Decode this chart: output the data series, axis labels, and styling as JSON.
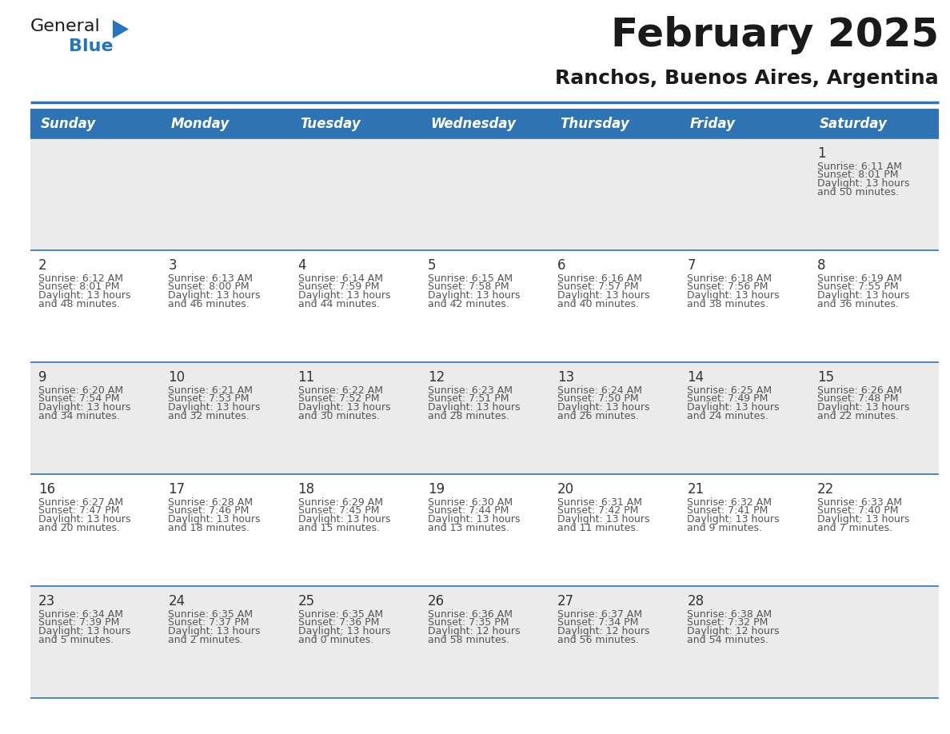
{
  "title": "February 2025",
  "subtitle": "Ranchos, Buenos Aires, Argentina",
  "days_of_week": [
    "Sunday",
    "Monday",
    "Tuesday",
    "Wednesday",
    "Thursday",
    "Friday",
    "Saturday"
  ],
  "header_bg": "#2E74B5",
  "header_text": "#FFFFFF",
  "row_bg": [
    "#EBEBEB",
    "#FFFFFF",
    "#EBEBEB",
    "#FFFFFF",
    "#EBEBEB"
  ],
  "divider_color": "#2E74B5",
  "day_num_color": "#333333",
  "cell_text_color": "#555555",
  "calendar_data": [
    {
      "day": 1,
      "col": 6,
      "row": 0,
      "sunrise": "6:11 AM",
      "sunset": "8:01 PM",
      "daylight": "13 hours and 50 minutes."
    },
    {
      "day": 2,
      "col": 0,
      "row": 1,
      "sunrise": "6:12 AM",
      "sunset": "8:01 PM",
      "daylight": "13 hours and 48 minutes."
    },
    {
      "day": 3,
      "col": 1,
      "row": 1,
      "sunrise": "6:13 AM",
      "sunset": "8:00 PM",
      "daylight": "13 hours and 46 minutes."
    },
    {
      "day": 4,
      "col": 2,
      "row": 1,
      "sunrise": "6:14 AM",
      "sunset": "7:59 PM",
      "daylight": "13 hours and 44 minutes."
    },
    {
      "day": 5,
      "col": 3,
      "row": 1,
      "sunrise": "6:15 AM",
      "sunset": "7:58 PM",
      "daylight": "13 hours and 42 minutes."
    },
    {
      "day": 6,
      "col": 4,
      "row": 1,
      "sunrise": "6:16 AM",
      "sunset": "7:57 PM",
      "daylight": "13 hours and 40 minutes."
    },
    {
      "day": 7,
      "col": 5,
      "row": 1,
      "sunrise": "6:18 AM",
      "sunset": "7:56 PM",
      "daylight": "13 hours and 38 minutes."
    },
    {
      "day": 8,
      "col": 6,
      "row": 1,
      "sunrise": "6:19 AM",
      "sunset": "7:55 PM",
      "daylight": "13 hours and 36 minutes."
    },
    {
      "day": 9,
      "col": 0,
      "row": 2,
      "sunrise": "6:20 AM",
      "sunset": "7:54 PM",
      "daylight": "13 hours and 34 minutes."
    },
    {
      "day": 10,
      "col": 1,
      "row": 2,
      "sunrise": "6:21 AM",
      "sunset": "7:53 PM",
      "daylight": "13 hours and 32 minutes."
    },
    {
      "day": 11,
      "col": 2,
      "row": 2,
      "sunrise": "6:22 AM",
      "sunset": "7:52 PM",
      "daylight": "13 hours and 30 minutes."
    },
    {
      "day": 12,
      "col": 3,
      "row": 2,
      "sunrise": "6:23 AM",
      "sunset": "7:51 PM",
      "daylight": "13 hours and 28 minutes."
    },
    {
      "day": 13,
      "col": 4,
      "row": 2,
      "sunrise": "6:24 AM",
      "sunset": "7:50 PM",
      "daylight": "13 hours and 26 minutes."
    },
    {
      "day": 14,
      "col": 5,
      "row": 2,
      "sunrise": "6:25 AM",
      "sunset": "7:49 PM",
      "daylight": "13 hours and 24 minutes."
    },
    {
      "day": 15,
      "col": 6,
      "row": 2,
      "sunrise": "6:26 AM",
      "sunset": "7:48 PM",
      "daylight": "13 hours and 22 minutes."
    },
    {
      "day": 16,
      "col": 0,
      "row": 3,
      "sunrise": "6:27 AM",
      "sunset": "7:47 PM",
      "daylight": "13 hours and 20 minutes."
    },
    {
      "day": 17,
      "col": 1,
      "row": 3,
      "sunrise": "6:28 AM",
      "sunset": "7:46 PM",
      "daylight": "13 hours and 18 minutes."
    },
    {
      "day": 18,
      "col": 2,
      "row": 3,
      "sunrise": "6:29 AM",
      "sunset": "7:45 PM",
      "daylight": "13 hours and 15 minutes."
    },
    {
      "day": 19,
      "col": 3,
      "row": 3,
      "sunrise": "6:30 AM",
      "sunset": "7:44 PM",
      "daylight": "13 hours and 13 minutes."
    },
    {
      "day": 20,
      "col": 4,
      "row": 3,
      "sunrise": "6:31 AM",
      "sunset": "7:42 PM",
      "daylight": "13 hours and 11 minutes."
    },
    {
      "day": 21,
      "col": 5,
      "row": 3,
      "sunrise": "6:32 AM",
      "sunset": "7:41 PM",
      "daylight": "13 hours and 9 minutes."
    },
    {
      "day": 22,
      "col": 6,
      "row": 3,
      "sunrise": "6:33 AM",
      "sunset": "7:40 PM",
      "daylight": "13 hours and 7 minutes."
    },
    {
      "day": 23,
      "col": 0,
      "row": 4,
      "sunrise": "6:34 AM",
      "sunset": "7:39 PM",
      "daylight": "13 hours and 5 minutes."
    },
    {
      "day": 24,
      "col": 1,
      "row": 4,
      "sunrise": "6:35 AM",
      "sunset": "7:37 PM",
      "daylight": "13 hours and 2 minutes."
    },
    {
      "day": 25,
      "col": 2,
      "row": 4,
      "sunrise": "6:35 AM",
      "sunset": "7:36 PM",
      "daylight": "13 hours and 0 minutes."
    },
    {
      "day": 26,
      "col": 3,
      "row": 4,
      "sunrise": "6:36 AM",
      "sunset": "7:35 PM",
      "daylight": "12 hours and 58 minutes."
    },
    {
      "day": 27,
      "col": 4,
      "row": 4,
      "sunrise": "6:37 AM",
      "sunset": "7:34 PM",
      "daylight": "12 hours and 56 minutes."
    },
    {
      "day": 28,
      "col": 5,
      "row": 4,
      "sunrise": "6:38 AM",
      "sunset": "7:32 PM",
      "daylight": "12 hours and 54 minutes."
    }
  ],
  "num_rows": 5,
  "num_cols": 7,
  "logo_text1": "General",
  "logo_text2": "Blue",
  "logo_text1_color": "#1a1a1a",
  "logo_text2_color": "#2477BE",
  "logo_triangle_color": "#2477BE",
  "title_fontsize": 36,
  "subtitle_fontsize": 18,
  "header_fontsize": 12,
  "daynum_fontsize": 12,
  "cell_fontsize": 9
}
